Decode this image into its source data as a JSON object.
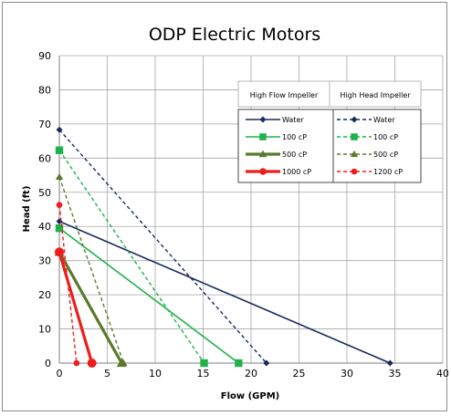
{
  "chart_data": {
    "type": "line",
    "title": "ODP Electric Motors",
    "xlabel": "Flow (GPM)",
    "ylabel": "Head (ft)",
    "xlim": [
      0,
      40
    ],
    "ylim": [
      0,
      90
    ],
    "xticks": [
      0,
      5,
      10,
      15,
      20,
      25,
      30,
      35,
      40
    ],
    "yticks": [
      0,
      10,
      20,
      30,
      40,
      50,
      60,
      70,
      80,
      90
    ],
    "grid": true,
    "legend_position": "top-right",
    "legend_groups": [
      "High Flow Impeller",
      "High Head Impeller"
    ],
    "series": [
      {
        "name": "Water",
        "group": "High Flow Impeller",
        "color": "#1a2a5c",
        "dash": false,
        "marker": "diamond",
        "width": 1.6,
        "x": [
          0,
          34.5
        ],
        "y": [
          41.5,
          0
        ]
      },
      {
        "name": "100 cP",
        "group": "High Flow Impeller",
        "color": "#1db34a",
        "dash": false,
        "marker": "square",
        "width": 1.6,
        "x": [
          0,
          18.7
        ],
        "y": [
          39.5,
          0
        ]
      },
      {
        "name": "500 cP",
        "group": "High Flow Impeller",
        "color": "#5a7a2e",
        "dash": false,
        "marker": "triangle",
        "width": 3.2,
        "x": [
          0,
          6.5
        ],
        "y": [
          32.5,
          0
        ]
      },
      {
        "name": "1000 cP",
        "group": "High Flow Impeller",
        "color": "#ee1c1c",
        "dash": false,
        "marker": "circle",
        "width": 3.2,
        "x": [
          0,
          3.4
        ],
        "y": [
          32.5,
          0
        ]
      },
      {
        "name": "Water",
        "group": "High Head Impeller",
        "color": "#1a2a5c",
        "dash": true,
        "marker": "diamond",
        "width": 1.4,
        "x": [
          0,
          21.6
        ],
        "y": [
          68.3,
          0
        ]
      },
      {
        "name": "100 cP",
        "group": "High Head Impeller",
        "color": "#1db34a",
        "dash": true,
        "marker": "square",
        "width": 1.4,
        "x": [
          0,
          15.1
        ],
        "y": [
          62.3,
          0
        ]
      },
      {
        "name": "500 cP",
        "group": "High Head Impeller",
        "color": "#5a7a2e",
        "dash": true,
        "marker": "triangle",
        "width": 1.4,
        "x": [
          0,
          6.7
        ],
        "y": [
          54.5,
          0
        ]
      },
      {
        "name": "1200 cP",
        "group": "High Head Impeller",
        "color": "#ee1c1c",
        "dash": true,
        "marker": "circle",
        "width": 1.4,
        "x": [
          0,
          1.8
        ],
        "y": [
          46.3,
          0
        ]
      }
    ]
  }
}
